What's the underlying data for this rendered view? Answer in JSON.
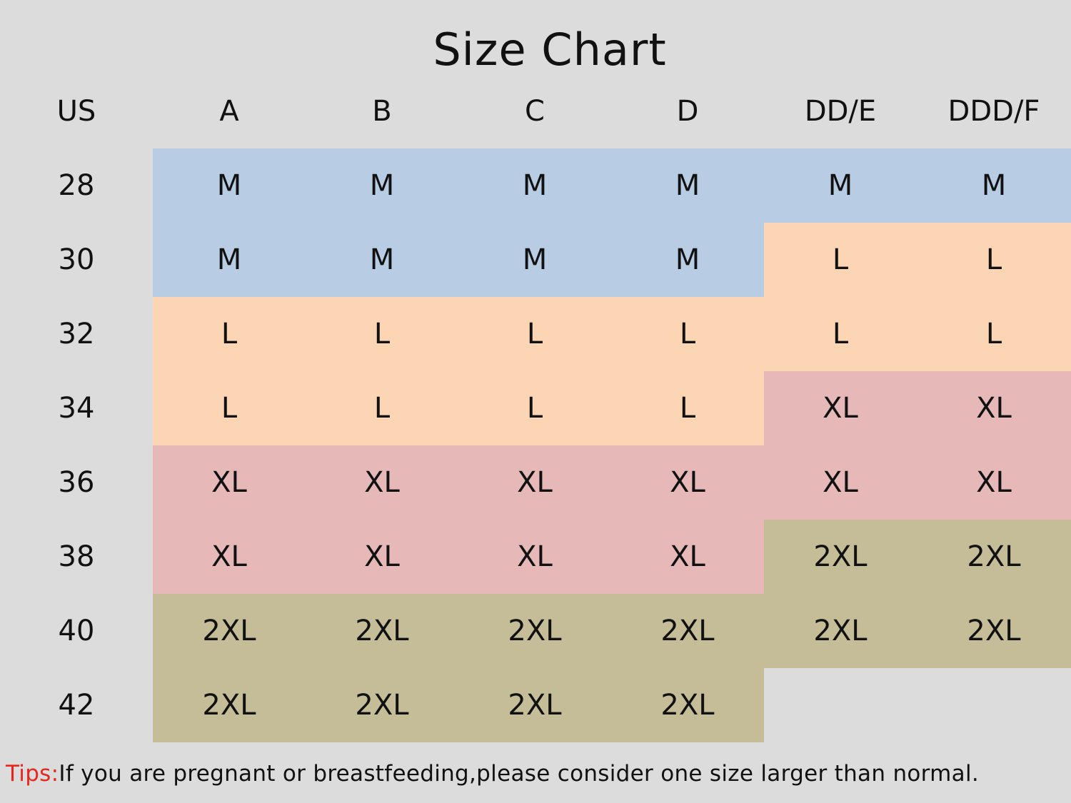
{
  "title": "Size Chart",
  "colors": {
    "M": "#b8cce4",
    "L": "#fcd5b4",
    "XL": "#e6b9b8",
    "2XL": "#c4bd97"
  },
  "headers": [
    "US",
    "A",
    "B",
    "C",
    "D",
    "DD/E",
    "DDD/F"
  ],
  "rows": [
    {
      "band": "28",
      "sizes": [
        "M",
        "M",
        "M",
        "M",
        "M",
        "M"
      ]
    },
    {
      "band": "30",
      "sizes": [
        "M",
        "M",
        "M",
        "M",
        "L",
        "L"
      ]
    },
    {
      "band": "32",
      "sizes": [
        "L",
        "L",
        "L",
        "L",
        "L",
        "L"
      ]
    },
    {
      "band": "34",
      "sizes": [
        "L",
        "L",
        "L",
        "L",
        "XL",
        "XL"
      ]
    },
    {
      "band": "36",
      "sizes": [
        "XL",
        "XL",
        "XL",
        "XL",
        "XL",
        "XL"
      ]
    },
    {
      "band": "38",
      "sizes": [
        "XL",
        "XL",
        "XL",
        "XL",
        "2XL",
        "2XL"
      ]
    },
    {
      "band": "40",
      "sizes": [
        "2XL",
        "2XL",
        "2XL",
        "2XL",
        "2XL",
        "2XL"
      ]
    },
    {
      "band": "42",
      "sizes": [
        "2XL",
        "2XL",
        "2XL",
        "2XL",
        "",
        ""
      ]
    }
  ],
  "tips": {
    "label": "Tips:",
    "text": "If you are pregnant or breastfeeding,please consider one size larger than normal."
  }
}
